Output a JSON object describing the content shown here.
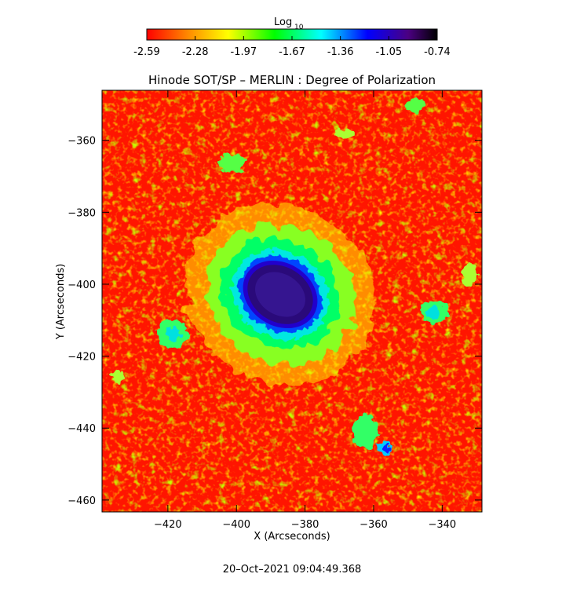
{
  "colorbar": {
    "label": "Log",
    "label_sub": "10",
    "ticks": [
      "-2.59",
      "-2.28",
      "-1.97",
      "-1.67",
      "-1.36",
      "-1.05",
      "-0.74"
    ],
    "range": [
      -2.59,
      -0.74
    ],
    "colors": [
      "#ff0000",
      "#ff8800",
      "#ffff00",
      "#00ff00",
      "#00ffff",
      "#0000ff",
      "#4b0082",
      "#000000"
    ]
  },
  "chart_data": {
    "type": "heatmap",
    "title": "Hinode SOT/SP – MERLIN : Degree of Polarization",
    "xlabel": "X (Arcseconds)",
    "ylabel": "Y (Arcseconds)",
    "xticks": [
      -420,
      -400,
      -380,
      -360,
      -340
    ],
    "yticks": [
      -360,
      -380,
      -400,
      -420,
      -440,
      -460
    ],
    "xlim": [
      -439.2,
      -328.4
    ],
    "ylim": [
      -463.3,
      -346.1
    ],
    "features": {
      "sunspot_center": [
        -387,
        -400
      ],
      "sunspot_peak_value": -0.74,
      "background_value": -2.59
    }
  },
  "timestamp": "20–Oct–2021 09:04:49.368"
}
